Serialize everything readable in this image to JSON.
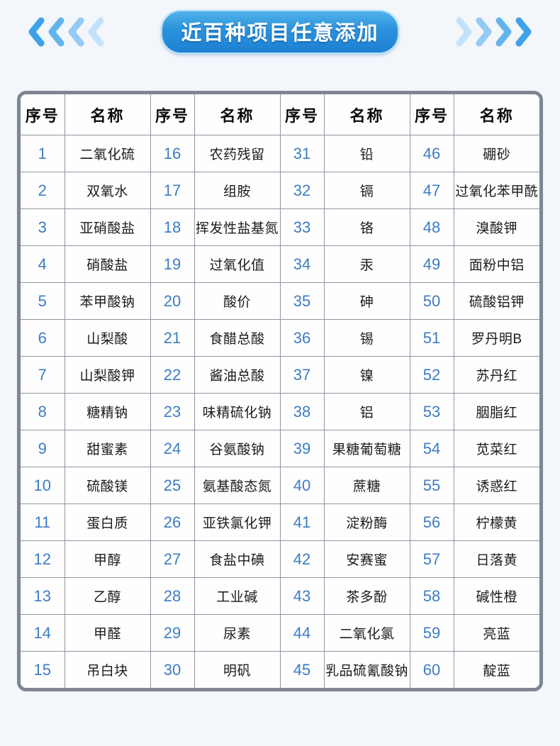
{
  "banner": {
    "title": "近百种项目任意添加",
    "pill_gradient_top": "#4fb2ea",
    "pill_gradient_bottom": "#1e80d3",
    "chevron_colors_left": [
      "#3ea2e9",
      "#63b4ee",
      "#93cbf4",
      "#c3e2fa"
    ],
    "chevron_colors_right": [
      "#c3e2fa",
      "#93cbf4",
      "#63b4ee",
      "#3ea2e9"
    ]
  },
  "table": {
    "number_color": "#3c7cc4",
    "column_headers": [
      "序号",
      "名称",
      "序号",
      "名称",
      "序号",
      "名称",
      "序号",
      "名称"
    ],
    "rows_per_column": 15,
    "items": [
      {
        "no": "1",
        "name": "二氧化硫"
      },
      {
        "no": "2",
        "name": "双氧水"
      },
      {
        "no": "3",
        "name": "亚硝酸盐"
      },
      {
        "no": "4",
        "name": "硝酸盐"
      },
      {
        "no": "5",
        "name": "苯甲酸钠"
      },
      {
        "no": "6",
        "name": "山梨酸"
      },
      {
        "no": "7",
        "name": "山梨酸钾"
      },
      {
        "no": "8",
        "name": "糖精钠"
      },
      {
        "no": "9",
        "name": "甜蜜素"
      },
      {
        "no": "10",
        "name": "硫酸镁"
      },
      {
        "no": "11",
        "name": "蛋白质"
      },
      {
        "no": "12",
        "name": "甲醇"
      },
      {
        "no": "13",
        "name": "乙醇"
      },
      {
        "no": "14",
        "name": "甲醛"
      },
      {
        "no": "15",
        "name": "吊白块"
      },
      {
        "no": "16",
        "name": "农药残留"
      },
      {
        "no": "17",
        "name": "组胺"
      },
      {
        "no": "18",
        "name": "挥发性盐基氮"
      },
      {
        "no": "19",
        "name": "过氧化值"
      },
      {
        "no": "20",
        "name": "酸价"
      },
      {
        "no": "21",
        "name": "食醋总酸"
      },
      {
        "no": "22",
        "name": "酱油总酸"
      },
      {
        "no": "23",
        "name": "味精硫化钠"
      },
      {
        "no": "24",
        "name": "谷氨酸钠"
      },
      {
        "no": "25",
        "name": "氨基酸态氮"
      },
      {
        "no": "26",
        "name": "亚铁氯化钾"
      },
      {
        "no": "27",
        "name": "食盐中碘"
      },
      {
        "no": "28",
        "name": "工业碱"
      },
      {
        "no": "29",
        "name": "尿素"
      },
      {
        "no": "30",
        "name": "明矾"
      },
      {
        "no": "31",
        "name": "铅"
      },
      {
        "no": "32",
        "name": "镉"
      },
      {
        "no": "33",
        "name": "铬"
      },
      {
        "no": "34",
        "name": "汞"
      },
      {
        "no": "35",
        "name": "砷"
      },
      {
        "no": "36",
        "name": "锡"
      },
      {
        "no": "37",
        "name": "镍"
      },
      {
        "no": "38",
        "name": "铝"
      },
      {
        "no": "39",
        "name": "果糖葡萄糖"
      },
      {
        "no": "40",
        "name": "蔗糖"
      },
      {
        "no": "41",
        "name": "淀粉酶"
      },
      {
        "no": "42",
        "name": "安赛蜜"
      },
      {
        "no": "43",
        "name": "茶多酚"
      },
      {
        "no": "44",
        "name": "二氧化氯"
      },
      {
        "no": "45",
        "name": "乳品硫氰酸钠"
      },
      {
        "no": "46",
        "name": "硼砂"
      },
      {
        "no": "47",
        "name": "过氧化苯甲酰"
      },
      {
        "no": "48",
        "name": "溴酸钾"
      },
      {
        "no": "49",
        "name": "面粉中铝"
      },
      {
        "no": "50",
        "name": "硫酸铝钾"
      },
      {
        "no": "51",
        "name": "罗丹明B"
      },
      {
        "no": "52",
        "name": "苏丹红"
      },
      {
        "no": "53",
        "name": "胭脂红"
      },
      {
        "no": "54",
        "name": "苋菜红"
      },
      {
        "no": "55",
        "name": "诱惑红"
      },
      {
        "no": "56",
        "name": "柠檬黄"
      },
      {
        "no": "57",
        "name": "日落黄"
      },
      {
        "no": "58",
        "name": "碱性橙"
      },
      {
        "no": "59",
        "name": "亮蓝"
      },
      {
        "no": "60",
        "name": "靛蓝"
      }
    ]
  }
}
